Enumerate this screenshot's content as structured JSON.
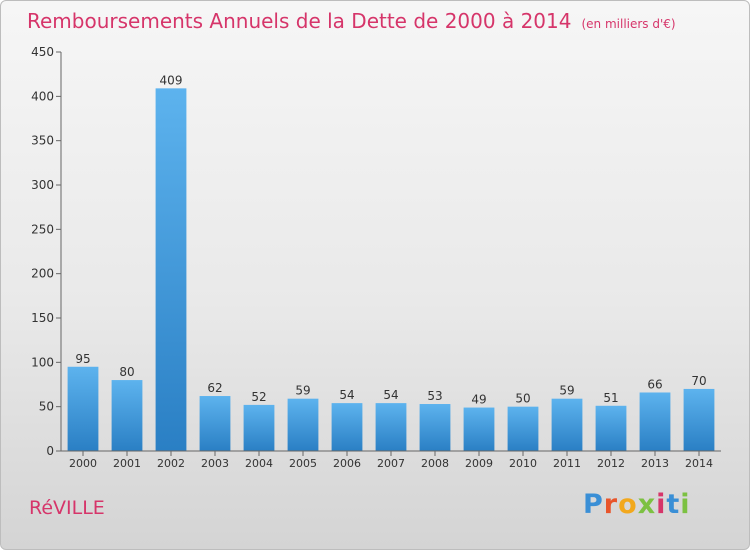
{
  "header": {
    "title": "Remboursements Annuels de la Dette de 2000 à 2014",
    "unit": "(en milliers d'€)"
  },
  "footer": {
    "commune": "RéVILLE",
    "brand_letters": [
      "P",
      "r",
      "o",
      "x",
      "i",
      "t",
      "i"
    ],
    "brand_colors": [
      "#3a8fd6",
      "#e8552b",
      "#f2a81d",
      "#7cc142",
      "#d6356a",
      "#3a8fd6",
      "#7cc142"
    ]
  },
  "chart_data": {
    "type": "bar",
    "title": "Remboursements Annuels de la Dette de 2000 à 2014",
    "subtitle": "(en milliers d'€)",
    "categories": [
      "2000",
      "2001",
      "2002",
      "2003",
      "2004",
      "2005",
      "2006",
      "2007",
      "2008",
      "2009",
      "2010",
      "2011",
      "2012",
      "2013",
      "2014"
    ],
    "values": [
      95,
      80,
      409,
      62,
      52,
      59,
      54,
      54,
      53,
      49,
      50,
      59,
      51,
      66,
      70
    ],
    "ylim": [
      0,
      450
    ],
    "yticks": [
      0,
      50,
      100,
      150,
      200,
      250,
      300,
      350,
      400,
      450
    ],
    "grid": false,
    "bar_color": "#4aa3e6",
    "data_labels": true
  }
}
